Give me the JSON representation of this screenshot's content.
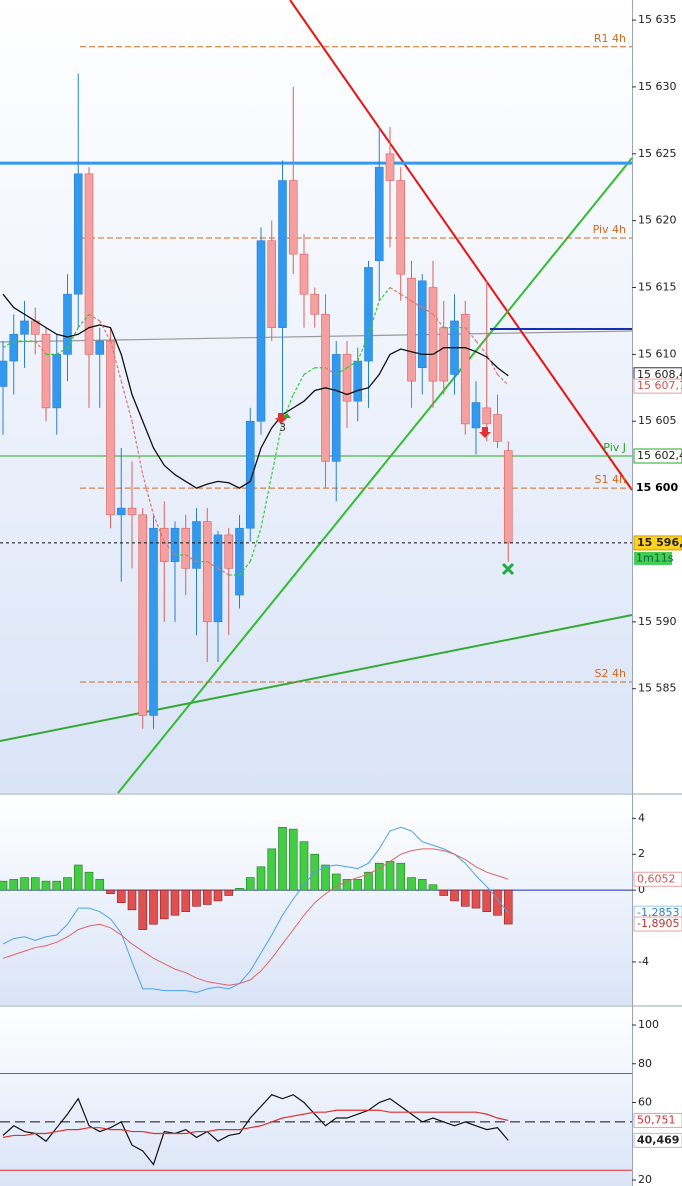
{
  "chart_data": [
    {
      "type": "candlestick",
      "ylim": [
        15577.2,
        15636.5
      ],
      "yticks": [
        {
          "value": 15635,
          "label": "15 635"
        },
        {
          "value": 15630,
          "label": "15 630"
        },
        {
          "value": 15625,
          "label": "15 625"
        },
        {
          "value": 15620,
          "label": "15 620"
        },
        {
          "value": 15615,
          "label": "15 615"
        },
        {
          "value": 15610,
          "label": "15 610"
        },
        {
          "value": 15605,
          "label": "15 605"
        },
        {
          "value": 15590,
          "label": "15 590"
        },
        {
          "value": 15585,
          "label": "15 585"
        }
      ],
      "up_color": "#3399ee",
      "down_color": "#f4a0a0",
      "open": [
        15607.6,
        15609.5,
        15611.5,
        15612.5,
        15611.5,
        15606,
        15610,
        15614.5,
        15623.5,
        15610,
        15611,
        15598,
        15598.5,
        15598,
        15583,
        15597,
        15594.5,
        15597,
        15594,
        15597.5,
        15590,
        15596.5,
        15592,
        15597,
        15605,
        15618.5,
        15612,
        15623,
        15617.5,
        15614.5,
        15613,
        15602,
        15610,
        15606.5,
        15609.5,
        15617,
        15625,
        15623,
        15615.7,
        15609,
        15615,
        15612,
        15608.5,
        15613,
        15604.5,
        15606,
        15605.5,
        15602.8
      ],
      "high": [
        15611,
        15613,
        15614,
        15613.5,
        15612,
        15611.5,
        15616,
        15631,
        15624,
        15612,
        15612,
        15603,
        15602,
        15598.5,
        15598,
        15599,
        15597.5,
        15598,
        15598.5,
        15598.5,
        15596.8,
        15597,
        15598,
        15606,
        15619.5,
        15620,
        15624.5,
        15630,
        15619,
        15615,
        15614.5,
        15611,
        15611,
        15610.5,
        15617,
        15627,
        15627,
        15624,
        15617,
        15616,
        15617,
        15614,
        15614.5,
        15614,
        15608,
        15615.5,
        15607,
        15603.5
      ],
      "low": [
        15604,
        15607,
        15609,
        15610,
        15605,
        15604,
        15608,
        15612,
        15606,
        15606,
        15597,
        15593,
        15594,
        15582,
        15582,
        15590,
        15590,
        15592,
        15589,
        15587,
        15587,
        15589,
        15591,
        15596,
        15604,
        15611,
        15605,
        15616,
        15612,
        15612,
        15600,
        15599,
        15604.5,
        15605,
        15606,
        15614,
        15618,
        15614,
        15606,
        15607,
        15606,
        15607,
        15607,
        15604,
        15602.5,
        15603.5,
        15603,
        15594.5
      ],
      "close": [
        15609.5,
        15611.5,
        15612.5,
        15611.5,
        15606,
        15610,
        15614.5,
        15623.5,
        15610,
        15611,
        15598,
        15598.5,
        15598,
        15583,
        15597,
        15594.5,
        15597,
        15594,
        15597.5,
        15590,
        15596.5,
        15594,
        15597,
        15605,
        15618.5,
        15612,
        15623,
        15617.5,
        15614.5,
        15613,
        15602,
        15610,
        15606.5,
        15609.5,
        15616.5,
        15624,
        15623,
        15616,
        15608,
        15615.5,
        15608,
        15608,
        15612.5,
        15604.8,
        15606.4,
        15604.8,
        15603.5,
        15595.9
      ],
      "close_label": "15 596,",
      "timer": "1m11s",
      "series": [
        {
          "color": "#111111",
          "values": [
            15614.5,
            15613.5,
            15613,
            15612.5,
            15612,
            15611.5,
            15611.3,
            15611.5,
            15612,
            15612.2,
            15612,
            15610,
            15607,
            15605,
            15603,
            15601.7,
            15601,
            15600.5,
            15600,
            15600.3,
            15600.5,
            15600.4,
            15600,
            15600.5,
            15603,
            15604.5,
            15605.5,
            15606,
            15606.5,
            15607.3,
            15607.5,
            15607.3,
            15607,
            15607.3,
            15607.5,
            15608.5,
            15610,
            15610.4,
            15610.2,
            15610,
            15610,
            15610.5,
            15610.5,
            15610.5,
            15610.2,
            15609.8,
            15609,
            15608.4
          ],
          "last_label": "15 608,4"
        },
        {
          "color": "#e07070",
          "up_color": "#33cc33",
          "dashed": true,
          "values": [
            15610.5,
            15611,
            15611,
            15611,
            15610,
            15610,
            15610.5,
            15612,
            15613,
            15612.5,
            15611,
            15608,
            15605,
            15601,
            15598,
            15596,
            15595,
            15595,
            15594.5,
            15594.5,
            15594,
            15593.5,
            15593.5,
            15594.5,
            15597,
            15601,
            15605,
            15607,
            15608.5,
            15609,
            15609,
            15608.5,
            15609,
            15609.5,
            15611.5,
            15614,
            15615,
            15614.5,
            15614,
            15613.5,
            15613,
            15612,
            15612,
            15612,
            15611,
            15610,
            15608.5,
            15607.7
          ],
          "last_label": "15 607,7"
        }
      ],
      "levels": [
        {
          "name": "R1 4h",
          "value": 15633,
          "color": "#d2691e",
          "style": "dashed"
        },
        {
          "name": "Piv 4h",
          "value": 15618.7,
          "color": "#d2691e",
          "style": "dashed"
        },
        {
          "name": "S1 4h",
          "value": 15600,
          "label": "15 600",
          "color": "#d2691e",
          "style": "dashed"
        },
        {
          "name": "S2 4h",
          "value": 15585.5,
          "color": "#d2691e",
          "style": "dashed"
        },
        {
          "name": "Piv J",
          "value": 15602.4,
          "label": "15 602,4",
          "color": "#22aa22",
          "style": "solid"
        }
      ],
      "hlines": [
        {
          "value": 15624.3,
          "color": "#3399ee"
        },
        {
          "value": 15611.9,
          "color": "#1a2fb0"
        }
      ],
      "annotation": "3"
    },
    {
      "type": "macd",
      "ylim": [
        -6.4,
        5.3
      ],
      "yticks": [
        4,
        2,
        0,
        -4
      ],
      "histogram": {
        "up_color": "#44cc44",
        "down_color": "#e05050",
        "values": [
          0.5,
          0.6,
          0.7,
          0.7,
          0.5,
          0.5,
          0.7,
          1.4,
          1.0,
          0.6,
          -0.2,
          -0.7,
          -1.1,
          -2.2,
          -1.9,
          -1.6,
          -1.4,
          -1.2,
          -0.9,
          -0.8,
          -0.6,
          -0.3,
          0.1,
          0.7,
          1.3,
          2.3,
          3.5,
          3.4,
          2.7,
          2.0,
          1.4,
          0.9,
          0.6,
          0.6,
          1.0,
          1.5,
          1.6,
          1.5,
          0.7,
          0.6,
          0.3,
          -0.3,
          -0.6,
          -0.9,
          -1.0,
          -1.2,
          -1.4,
          -1.8905
        ],
        "last_label": "-1,8905"
      },
      "series": [
        {
          "color": "#4aa3e8",
          "values": [
            -3.0,
            -2.7,
            -2.6,
            -2.8,
            -2.6,
            -2.5,
            -1.9,
            -1.0,
            -1.0,
            -1.2,
            -1.6,
            -2.4,
            -4.0,
            -5.5,
            -5.5,
            -5.6,
            -5.6,
            -5.6,
            -5.7,
            -5.5,
            -5.4,
            -5.5,
            -5.2,
            -4.5,
            -3.5,
            -2.5,
            -1.4,
            -0.5,
            0.3,
            1.0,
            1.3,
            1.4,
            1.3,
            1.2,
            1.5,
            2.3,
            3.3,
            3.5,
            3.3,
            2.7,
            2.5,
            2.3,
            2.0,
            1.5,
            0.8,
            0.2,
            -0.5,
            -1.2853
          ],
          "last_label": "-1,2853"
        },
        {
          "color": "#e06666",
          "values": [
            -3.8,
            -3.6,
            -3.4,
            -3.2,
            -3.1,
            -2.9,
            -2.6,
            -2.2,
            -2.0,
            -1.9,
            -2.1,
            -2.5,
            -3.0,
            -3.4,
            -3.8,
            -4.1,
            -4.4,
            -4.6,
            -4.9,
            -5.1,
            -5.2,
            -5.3,
            -5.2,
            -5.0,
            -4.5,
            -3.8,
            -3.0,
            -2.2,
            -1.4,
            -0.7,
            -0.2,
            0.2,
            0.5,
            0.7,
            0.9,
            1.2,
            1.6,
            2.0,
            2.2,
            2.3,
            2.3,
            2.2,
            2.0,
            1.7,
            1.3,
            1.0,
            0.8,
            0.6052
          ],
          "last_label": "0,6052"
        }
      ]
    },
    {
      "type": "line",
      "ylim": [
        16.9,
        109.3
      ],
      "yticks": [
        100,
        80,
        60,
        20
      ],
      "levels": [
        {
          "value": 75,
          "color": "#e03030"
        },
        {
          "value": 50,
          "color": "#111111",
          "dashed": true
        },
        {
          "value": 25,
          "color": "#e03030"
        }
      ],
      "series": [
        {
          "color": "#111111",
          "values": [
            43,
            48,
            45,
            44,
            40,
            47,
            54,
            62,
            48,
            45,
            47,
            50,
            38,
            35,
            28,
            45,
            44,
            46,
            42,
            45,
            40,
            43,
            44,
            52,
            58,
            64,
            62,
            64,
            60,
            54,
            48,
            52,
            52,
            54,
            56,
            60,
            62,
            58,
            54,
            50,
            52,
            50,
            48,
            50,
            48,
            46,
            47,
            40.469
          ],
          "last_label": "40,469"
        },
        {
          "color": "#e03030",
          "values": [
            42,
            43,
            43,
            44,
            44,
            45,
            46,
            46,
            47,
            47,
            46,
            46,
            45,
            45,
            44,
            44,
            44,
            44,
            45,
            45,
            46,
            46,
            46,
            47,
            48,
            50,
            52,
            53,
            54,
            55,
            55,
            56,
            56,
            56,
            56,
            56,
            55,
            55,
            55,
            55,
            55,
            55,
            55,
            55,
            55,
            54,
            52,
            50.751
          ],
          "last_label": "50,751"
        }
      ]
    }
  ]
}
